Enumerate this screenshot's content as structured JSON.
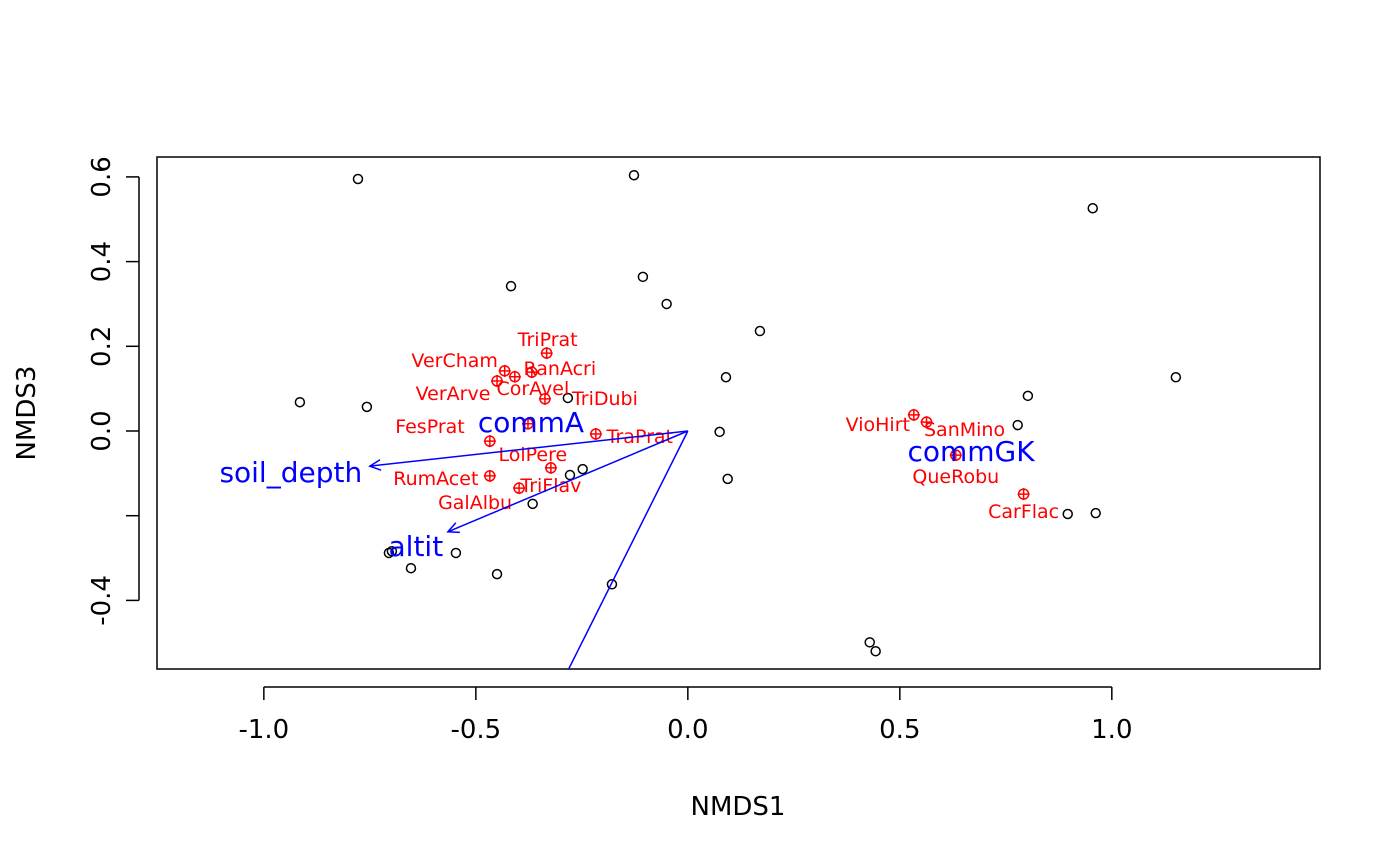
{
  "chart_data": {
    "type": "scatter",
    "title": "",
    "xlabel": "NMDS1",
    "ylabel": "NMDS3",
    "xlim": [
      -1.252,
      1.491
    ],
    "ylim": [
      -0.562,
      0.647
    ],
    "xticks": [
      -1.0,
      -0.5,
      0.0,
      0.5,
      1.0
    ],
    "xtick_labels": [
      "-1.0",
      "-0.5",
      "0.0",
      "0.5",
      "1.0"
    ],
    "yticks": [
      -0.4,
      -0.2,
      0.0,
      0.2,
      0.4,
      0.6
    ],
    "ytick_labels": [
      "-0.4",
      "",
      "0.0",
      "0.2",
      "0.4",
      "0.6"
    ],
    "sites": [
      [
        -0.778,
        0.595
      ],
      [
        -0.127,
        0.604
      ],
      [
        0.955,
        0.526
      ],
      [
        -0.106,
        0.364
      ],
      [
        -0.417,
        0.342
      ],
      [
        -0.05,
        0.3
      ],
      [
        0.17,
        0.236
      ],
      [
        0.09,
        0.127
      ],
      [
        1.151,
        0.127
      ],
      [
        0.802,
        0.083
      ],
      [
        -0.915,
        0.068
      ],
      [
        -0.757,
        0.057
      ],
      [
        -0.283,
        0.078
      ],
      [
        0.075,
        -0.002
      ],
      [
        0.778,
        0.014
      ],
      [
        -0.248,
        -0.09
      ],
      [
        -0.278,
        -0.104
      ],
      [
        0.094,
        -0.113
      ],
      [
        -0.366,
        -0.172
      ],
      [
        0.896,
        -0.196
      ],
      [
        0.962,
        -0.194
      ],
      [
        -0.705,
        -0.288
      ],
      [
        -0.698,
        -0.284
      ],
      [
        -0.547,
        -0.288
      ],
      [
        -0.653,
        -0.324
      ],
      [
        -0.45,
        -0.338
      ],
      [
        -0.179,
        -0.362
      ],
      [
        0.429,
        -0.499
      ],
      [
        0.443,
        -0.52
      ]
    ],
    "species": [
      {
        "name": "TriPrat",
        "x": -0.333,
        "y": 0.184
      },
      {
        "name": "VerCham",
        "x": -0.432,
        "y": 0.142
      },
      {
        "name": "RanAcri",
        "x": -0.368,
        "y": 0.139
      },
      {
        "name": "CorAvel",
        "x": -0.408,
        "y": 0.128
      },
      {
        "name": "VerArve",
        "x": -0.45,
        "y": 0.118
      },
      {
        "name": "TriDubi",
        "x": -0.337,
        "y": 0.076
      },
      {
        "name": "FesPrat",
        "x": -0.377,
        "y": 0.017
      },
      {
        "name": "TraPrat",
        "x": -0.217,
        "y": -0.007
      },
      {
        "name": "LolPere",
        "x": -0.467,
        "y": -0.024
      },
      {
        "name": "RumAcet",
        "x": -0.467,
        "y": -0.106
      },
      {
        "name": "TriFlav",
        "x": -0.323,
        "y": -0.087
      },
      {
        "name": "GalAlbu",
        "x": -0.398,
        "y": -0.135
      },
      {
        "name": "VioHirt",
        "x": 0.533,
        "y": 0.038
      },
      {
        "name": "SanMino",
        "x": 0.563,
        "y": 0.021
      },
      {
        "name": "QueRobu",
        "x": 0.632,
        "y": -0.057
      },
      {
        "name": "CarFlac",
        "x": 0.792,
        "y": -0.149
      }
    ],
    "vectors": [
      {
        "name": "soil_depth",
        "x": -0.75,
        "y": -0.083,
        "label": "soil_depth"
      },
      {
        "name": "altit",
        "x": -0.566,
        "y": -0.238,
        "label": "altit"
      },
      {
        "name": "unlabeled",
        "x": -0.33,
        "y": -0.66,
        "label": ""
      }
    ],
    "centroids": [
      {
        "name": "commA",
        "x": -0.37,
        "y": 0.021
      },
      {
        "name": "commGK",
        "x": 0.668,
        "y": -0.047
      }
    ],
    "colors": {
      "sites": "#000000",
      "species": "#ff0000",
      "vectors": "#0000ff"
    }
  }
}
